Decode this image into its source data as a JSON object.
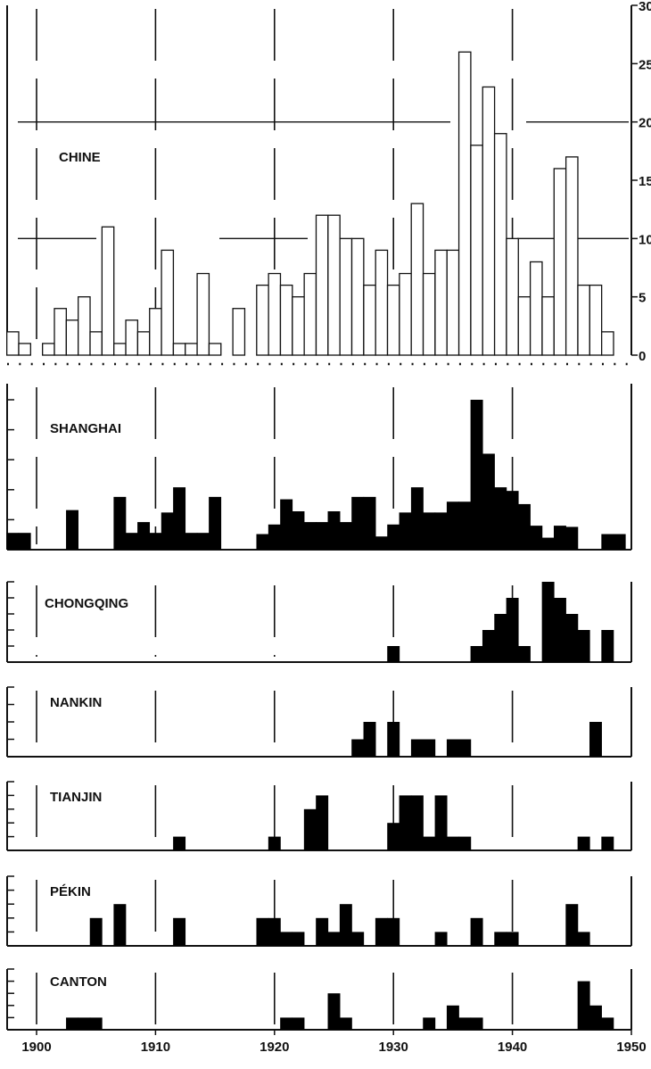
{
  "chart_data": {
    "type": "bar",
    "x_axis": {
      "range": [
        1897.5,
        1950
      ],
      "ticks": [
        1900,
        1910,
        1920,
        1930,
        1940,
        1950
      ],
      "tick_labels": [
        "1900",
        "1910",
        "1920",
        "1930",
        "1940",
        "1950"
      ]
    },
    "panels": [
      {
        "title": "CHINE",
        "style": "hollow",
        "ylim": [
          0,
          30
        ],
        "yticks": [
          0,
          5,
          10,
          15,
          20,
          25,
          30
        ],
        "ytick_labels": [
          "0",
          "5",
          "10",
          "15",
          "20",
          "25",
          "30"
        ],
        "x": [
          1898,
          1899,
          1901,
          1902,
          1903,
          1904,
          1905,
          1906,
          1907,
          1908,
          1909,
          1910,
          1911,
          1912,
          1913,
          1914,
          1915,
          1917,
          1919,
          1920,
          1921,
          1922,
          1923,
          1924,
          1925,
          1926,
          1927,
          1928,
          1929,
          1930,
          1931,
          1932,
          1933,
          1934,
          1935,
          1936,
          1937,
          1938,
          1939,
          1940,
          1941,
          1942,
          1943,
          1944,
          1945,
          1946,
          1947,
          1948,
          1949
        ],
        "values": [
          2,
          1,
          1,
          4,
          3,
          5,
          2,
          11,
          1,
          3,
          2,
          4,
          9,
          1,
          1,
          7,
          1,
          4,
          6,
          7,
          6,
          5,
          7,
          12,
          12,
          10,
          10,
          6,
          9,
          6,
          7,
          13,
          7,
          9,
          9,
          26,
          18,
          23,
          19,
          10,
          5,
          8,
          5,
          16,
          17,
          6,
          6,
          2,
          0
        ]
      },
      {
        "title": "SHANGHAI",
        "style": "filled",
        "ylim": [
          0,
          12.5
        ],
        "yticks": [
          0,
          2.5,
          5,
          7.5,
          10,
          12.5
        ],
        "x": [
          1898,
          1899,
          1903,
          1907,
          1908,
          1909,
          1910,
          1911,
          1912,
          1913,
          1914,
          1915,
          1919,
          1920,
          1921,
          1922,
          1923,
          1924,
          1925,
          1926,
          1927,
          1928,
          1929,
          1930,
          1931,
          1932,
          1933,
          1934,
          1935,
          1936,
          1937,
          1938,
          1939,
          1940,
          1941,
          1942,
          1943,
          1944,
          1945,
          1948,
          1949
        ],
        "values": [
          1.4,
          1.4,
          3.3,
          4.4,
          1.4,
          2.3,
          1.4,
          3.1,
          5.2,
          1.4,
          1.4,
          4.4,
          1.3,
          2.1,
          4.2,
          3.2,
          2.3,
          2.3,
          3.2,
          2.3,
          4.4,
          4.4,
          1.1,
          2.1,
          3.1,
          5.2,
          3.1,
          3.1,
          4.0,
          4.0,
          12.5,
          8.0,
          5.2,
          4.9,
          3.8,
          2.0,
          1.0,
          2.0,
          1.9,
          1.3,
          1.3
        ]
      },
      {
        "title": "CHONGQING",
        "style": "filled",
        "ylim": [
          0,
          5
        ],
        "yticks": [
          0,
          1,
          2,
          3,
          4,
          5
        ],
        "x": [
          1930,
          1937,
          1938,
          1939,
          1940,
          1941,
          1943,
          1944,
          1945,
          1946,
          1948
        ],
        "values": [
          1,
          1,
          2,
          3,
          4,
          1,
          5,
          4,
          3,
          2,
          2
        ]
      },
      {
        "title": "NANKIN",
        "style": "filled",
        "ylim": [
          0,
          4
        ],
        "yticks": [
          0,
          1,
          2,
          3,
          4
        ],
        "x": [
          1927,
          1928,
          1930,
          1932,
          1933,
          1935,
          1936,
          1947
        ],
        "values": [
          1,
          2,
          2,
          1,
          1,
          1,
          1,
          2
        ]
      },
      {
        "title": "TIANJIN",
        "style": "filled",
        "ylim": [
          0,
          5
        ],
        "yticks": [
          0,
          1,
          2,
          3,
          4,
          5
        ],
        "x": [
          1912,
          1920,
          1923,
          1924,
          1930,
          1931,
          1932,
          1933,
          1934,
          1935,
          1936,
          1946,
          1948
        ],
        "values": [
          1,
          1,
          3,
          4,
          2,
          4,
          4,
          1,
          4,
          1,
          1,
          1,
          1
        ]
      },
      {
        "title": "PÉKIN",
        "style": "filled",
        "ylim": [
          0,
          5
        ],
        "yticks": [
          0,
          1,
          2,
          3,
          4,
          5
        ],
        "x": [
          1905,
          1907,
          1912,
          1919,
          1920,
          1921,
          1922,
          1924,
          1925,
          1926,
          1927,
          1929,
          1930,
          1934,
          1937,
          1939,
          1940,
          1945,
          1946
        ],
        "values": [
          2,
          3,
          2,
          2,
          2,
          1,
          1,
          2,
          1,
          3,
          1,
          2,
          2,
          1,
          2,
          1,
          1,
          3,
          1
        ]
      },
      {
        "title": "CANTON",
        "style": "filled",
        "ylim": [
          0,
          5
        ],
        "yticks": [
          0,
          1,
          2,
          3,
          4,
          5
        ],
        "x": [
          1903,
          1904,
          1905,
          1921,
          1922,
          1925,
          1926,
          1933,
          1935,
          1936,
          1937,
          1946,
          1947,
          1948
        ],
        "values": [
          1,
          1,
          1,
          1,
          1,
          3,
          1,
          1,
          2,
          1,
          1,
          4,
          2,
          1
        ]
      }
    ]
  }
}
